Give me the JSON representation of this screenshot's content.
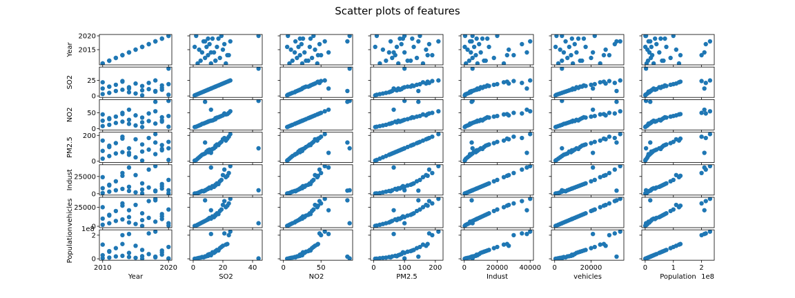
{
  "chart_data": {
    "type": "scatter",
    "title": "Scatter plots of features",
    "variables": [
      "Year",
      "SO2",
      "NO2",
      "PM2.5",
      "Indust",
      "vehicles",
      "Population"
    ],
    "color": "#1f77b4",
    "axis_ranges": {
      "Year": [
        2009.5,
        2020.5
      ],
      "SO2": [
        -2.3,
        46.5
      ],
      "NO2": [
        -4.3,
        92
      ],
      "PM2.5": [
        -10,
        225
      ],
      "Indust": [
        -2000,
        42000
      ],
      "vehicles": [
        -1800,
        38000
      ],
      "Population": [
        -12000000,
        245000000
      ]
    },
    "ticks": {
      "Year": {
        "col": [
          {
            "value": 2010,
            "label": "2010"
          },
          {
            "value": 2020,
            "label": "2020"
          }
        ],
        "row": [
          {
            "value": 2015,
            "label": "2015"
          },
          {
            "value": 2020,
            "label": "2020"
          }
        ]
      },
      "SO2": {
        "col": [
          {
            "value": 0,
            "label": "0"
          },
          {
            "value": 20,
            "label": "20"
          },
          {
            "value": 40,
            "label": "40"
          }
        ],
        "row": [
          {
            "value": 0,
            "label": "0"
          },
          {
            "value": 25,
            "label": "25"
          }
        ]
      },
      "NO2": {
        "col": [
          {
            "value": 0,
            "label": "0"
          },
          {
            "value": 50,
            "label": "50"
          }
        ],
        "row": [
          {
            "value": 0,
            "label": "0"
          },
          {
            "value": 50,
            "label": "50"
          }
        ]
      },
      "PM2.5": {
        "col": [
          {
            "value": 0,
            "label": "0"
          },
          {
            "value": 100,
            "label": "100"
          },
          {
            "value": 200,
            "label": "200"
          }
        ],
        "row": [
          {
            "value": 0,
            "label": "0"
          },
          {
            "value": 200,
            "label": "200"
          }
        ]
      },
      "Indust": {
        "col": [
          {
            "value": 0,
            "label": "0"
          },
          {
            "value": 20000,
            "label": "20000"
          },
          {
            "value": 40000,
            "label": "40000"
          }
        ],
        "row": [
          {
            "value": 0,
            "label": "0"
          },
          {
            "value": 25000,
            "label": "25000"
          }
        ]
      },
      "vehicles": {
        "col": [
          {
            "value": 0,
            "label": "0"
          },
          {
            "value": 20000,
            "label": "20000"
          }
        ],
        "row": [
          {
            "value": 0,
            "label": "0"
          },
          {
            "value": 25000,
            "label": "25000"
          }
        ]
      },
      "Population": {
        "col": [
          {
            "value": 0,
            "label": "0"
          },
          {
            "value": 100000000,
            "label": "1"
          },
          {
            "value": 200000000,
            "label": "2"
          }
        ],
        "row": [
          {
            "value": 0,
            "label": "0"
          },
          {
            "value": 200000000,
            "label": "2"
          }
        ]
      }
    },
    "offset_labels": {
      "x": "1e8",
      "y": "1e8"
    },
    "points": {
      "Year": [
        2010,
        2010,
        2010,
        2011,
        2011,
        2012,
        2012,
        2013,
        2013,
        2014,
        2014,
        2015,
        2015,
        2016,
        2016,
        2017,
        2017,
        2018,
        2018,
        2019,
        2019,
        2020,
        2020,
        2020,
        2013,
        2016,
        2019,
        2011,
        2014,
        2018
      ],
      "SO2": [
        3,
        12,
        22,
        5,
        15,
        8,
        18,
        10,
        24,
        6,
        14,
        20,
        4,
        16,
        9,
        21,
        11,
        25,
        7,
        13,
        17,
        44,
        2,
        19,
        23,
        1,
        10,
        15,
        12,
        8
      ],
      "NO2": [
        8,
        25,
        45,
        12,
        30,
        18,
        38,
        22,
        50,
        15,
        28,
        42,
        10,
        35,
        20,
        48,
        24,
        55,
        16,
        26,
        36,
        88,
        6,
        40,
        46,
        5,
        22,
        33,
        60,
        85
      ],
      "PM2.5": [
        20,
        80,
        160,
        40,
        110,
        60,
        140,
        70,
        190,
        50,
        100,
        170,
        30,
        130,
        75,
        180,
        90,
        210,
        55,
        95,
        125,
        100,
        10,
        150,
        175,
        5,
        85,
        120,
        65,
        145
      ],
      "Indust": [
        1000,
        8000,
        24000,
        3000,
        12000,
        5000,
        18000,
        7000,
        30000,
        4000,
        10000,
        27000,
        2000,
        15000,
        6000,
        35000,
        9000,
        40000,
        3500,
        11000,
        14000,
        5000,
        500,
        20000,
        26000,
        300,
        7500,
        13000,
        38000,
        4500
      ],
      "vehicles": [
        2000,
        10000,
        25000,
        4000,
        14000,
        7000,
        20000,
        9000,
        30000,
        5000,
        12000,
        28000,
        3000,
        17000,
        8000,
        33000,
        11000,
        36000,
        6000,
        13000,
        16000,
        4000,
        1000,
        22000,
        27000,
        500,
        9500,
        15000,
        21000,
        34000
      ],
      "Population": [
        5000000,
        30000000,
        120000000,
        10000000,
        60000000,
        20000000,
        90000000,
        25000000,
        200000000,
        15000000,
        50000000,
        110000000,
        8000000,
        75000000,
        22000000,
        215000000,
        40000000,
        230000000,
        12000000,
        55000000,
        70000000,
        3000000,
        1000000,
        100000000,
        125000000,
        500000,
        35000000,
        65000000,
        210000000,
        18000000
      ]
    }
  }
}
